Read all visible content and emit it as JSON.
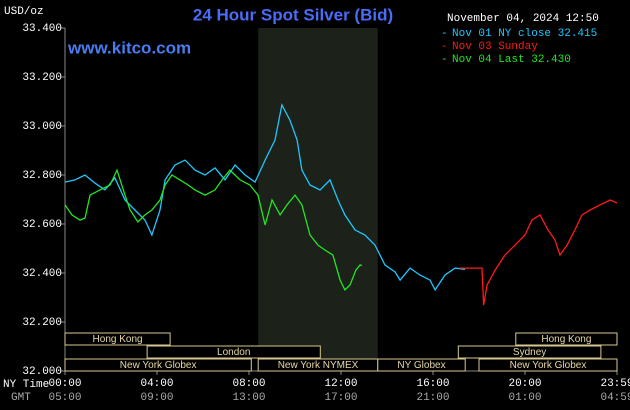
{
  "chart_data": {
    "type": "line",
    "title": "24 Hour Spot Silver (Bid)",
    "timestamp": "November 04, 2024 12:50",
    "website": "www.kitco.com",
    "y_unit": "USD/oz",
    "x_row_label": "NY Time",
    "gmt_row_label": "GMT",
    "xlim": [
      0,
      24
    ],
    "xticks": [
      {
        "value": 0,
        "label": "00:00"
      },
      {
        "value": 4,
        "label": "04:00"
      },
      {
        "value": 8,
        "label": "08:00"
      },
      {
        "value": 12,
        "label": "12:00"
      },
      {
        "value": 16,
        "label": "16:00"
      },
      {
        "value": 20,
        "label": "20:00"
      },
      {
        "value": 24,
        "label": "23:59"
      }
    ],
    "gmt_tick_labels": [
      "05:00",
      "09:00",
      "13:00",
      "17:00",
      "21:00",
      "01:00",
      "04:59"
    ],
    "ylim": [
      32.0,
      33.4
    ],
    "yticks": [
      {
        "value": 32.0,
        "label": "32.000"
      },
      {
        "value": 32.2,
        "label": "32.200"
      },
      {
        "value": 32.4,
        "label": "32.400"
      },
      {
        "value": 32.6,
        "label": "32.600"
      },
      {
        "value": 32.8,
        "label": "32.800"
      },
      {
        "value": 33.0,
        "label": "33.000"
      },
      {
        "value": 33.2,
        "label": "33.200"
      },
      {
        "value": 33.4,
        "label": "33.400"
      }
    ],
    "highlight": {
      "start": 8.4,
      "end": 13.6,
      "color": "#1c2119"
    },
    "sessions": [
      {
        "label": "Hong Kong",
        "start": 0,
        "end": 4.57,
        "row": 0
      },
      {
        "label": "London",
        "start": 3.57,
        "end": 11.1,
        "row": 1
      },
      {
        "label": "New York Globex",
        "start": 0,
        "end": 8.1,
        "row": 2
      },
      {
        "label": "New York NYMEX",
        "start": 8.4,
        "end": 13.6,
        "row": 2
      },
      {
        "label": "NY Globex",
        "start": 13.6,
        "end": 17.4,
        "row": 2
      },
      {
        "label": "Hong Kong",
        "start": 19.6,
        "end": 24,
        "row": 0
      },
      {
        "label": "Sydney",
        "start": 17.1,
        "end": 23.3,
        "row": 1
      },
      {
        "label": "New York Globex",
        "start": 18,
        "end": 24,
        "row": 2
      }
    ],
    "series": [
      {
        "name": "Nov 01 NY close 32.415",
        "color": "#1ec8ff",
        "x": [
          0,
          0.43,
          0.87,
          1.3,
          1.74,
          2.17,
          2.61,
          3.04,
          3.48,
          3.78,
          4.13,
          4.35,
          4.78,
          5.22,
          5.65,
          6.09,
          6.52,
          6.96,
          7.39,
          7.83,
          8.26,
          8.7,
          9.13,
          9.43,
          9.78,
          10.09,
          10.3,
          10.65,
          11.09,
          11.52,
          11.87,
          12.17,
          12.61,
          13.04,
          13.48,
          13.91,
          14.35,
          14.57,
          15,
          15.43,
          15.87,
          16.09,
          16.52,
          16.96,
          17.39
        ],
        "values": [
          32.771,
          32.78,
          32.8,
          32.767,
          32.739,
          32.788,
          32.698,
          32.657,
          32.616,
          32.555,
          32.657,
          32.78,
          32.841,
          32.861,
          32.82,
          32.8,
          32.829,
          32.78,
          32.841,
          32.8,
          32.771,
          32.861,
          32.943,
          33.086,
          33.024,
          32.943,
          32.82,
          32.759,
          32.739,
          32.78,
          32.698,
          32.637,
          32.576,
          32.555,
          32.514,
          32.433,
          32.404,
          32.371,
          32.42,
          32.392,
          32.371,
          32.331,
          32.392,
          32.42,
          32.415
        ]
      },
      {
        "name": "Nov 03 Sunday",
        "color": "#ff1a1a",
        "x": [
          17.17,
          18.13,
          18.2,
          18.35,
          18.7,
          19.13,
          19.57,
          20,
          20.3,
          20.65,
          21,
          21.3,
          21.52,
          21.83,
          22.17,
          22.48,
          22.83,
          23.26,
          23.7,
          24
        ],
        "values": [
          32.42,
          32.42,
          32.269,
          32.351,
          32.412,
          32.473,
          32.514,
          32.555,
          32.616,
          32.637,
          32.576,
          32.535,
          32.473,
          32.514,
          32.576,
          32.637,
          32.657,
          32.678,
          32.698,
          32.686
        ]
      },
      {
        "name": "Nov 04 Last 32.430",
        "color": "#22e622",
        "x": [
          0,
          0.3,
          0.65,
          0.87,
          1.09,
          1.52,
          1.96,
          2.26,
          2.61,
          2.83,
          3.17,
          3.48,
          3.78,
          4.13,
          4.35,
          4.65,
          5,
          5.35,
          5.65,
          6.09,
          6.52,
          6.83,
          7.17,
          7.61,
          8.04,
          8.39,
          8.7,
          9,
          9.35,
          9.65,
          10,
          10.3,
          10.65,
          11,
          11.3,
          11.65,
          11.96,
          12.17,
          12.39,
          12.65,
          12.83,
          12.91
        ],
        "values": [
          32.678,
          32.637,
          32.616,
          32.624,
          32.718,
          32.739,
          32.759,
          32.82,
          32.718,
          32.657,
          32.608,
          32.637,
          32.657,
          32.698,
          32.759,
          32.8,
          32.78,
          32.759,
          32.739,
          32.718,
          32.739,
          32.78,
          32.82,
          32.78,
          32.759,
          32.718,
          32.596,
          32.698,
          32.637,
          32.678,
          32.718,
          32.678,
          32.555,
          32.514,
          32.494,
          32.473,
          32.371,
          32.331,
          32.351,
          32.412,
          32.433,
          32.43
        ]
      }
    ]
  }
}
